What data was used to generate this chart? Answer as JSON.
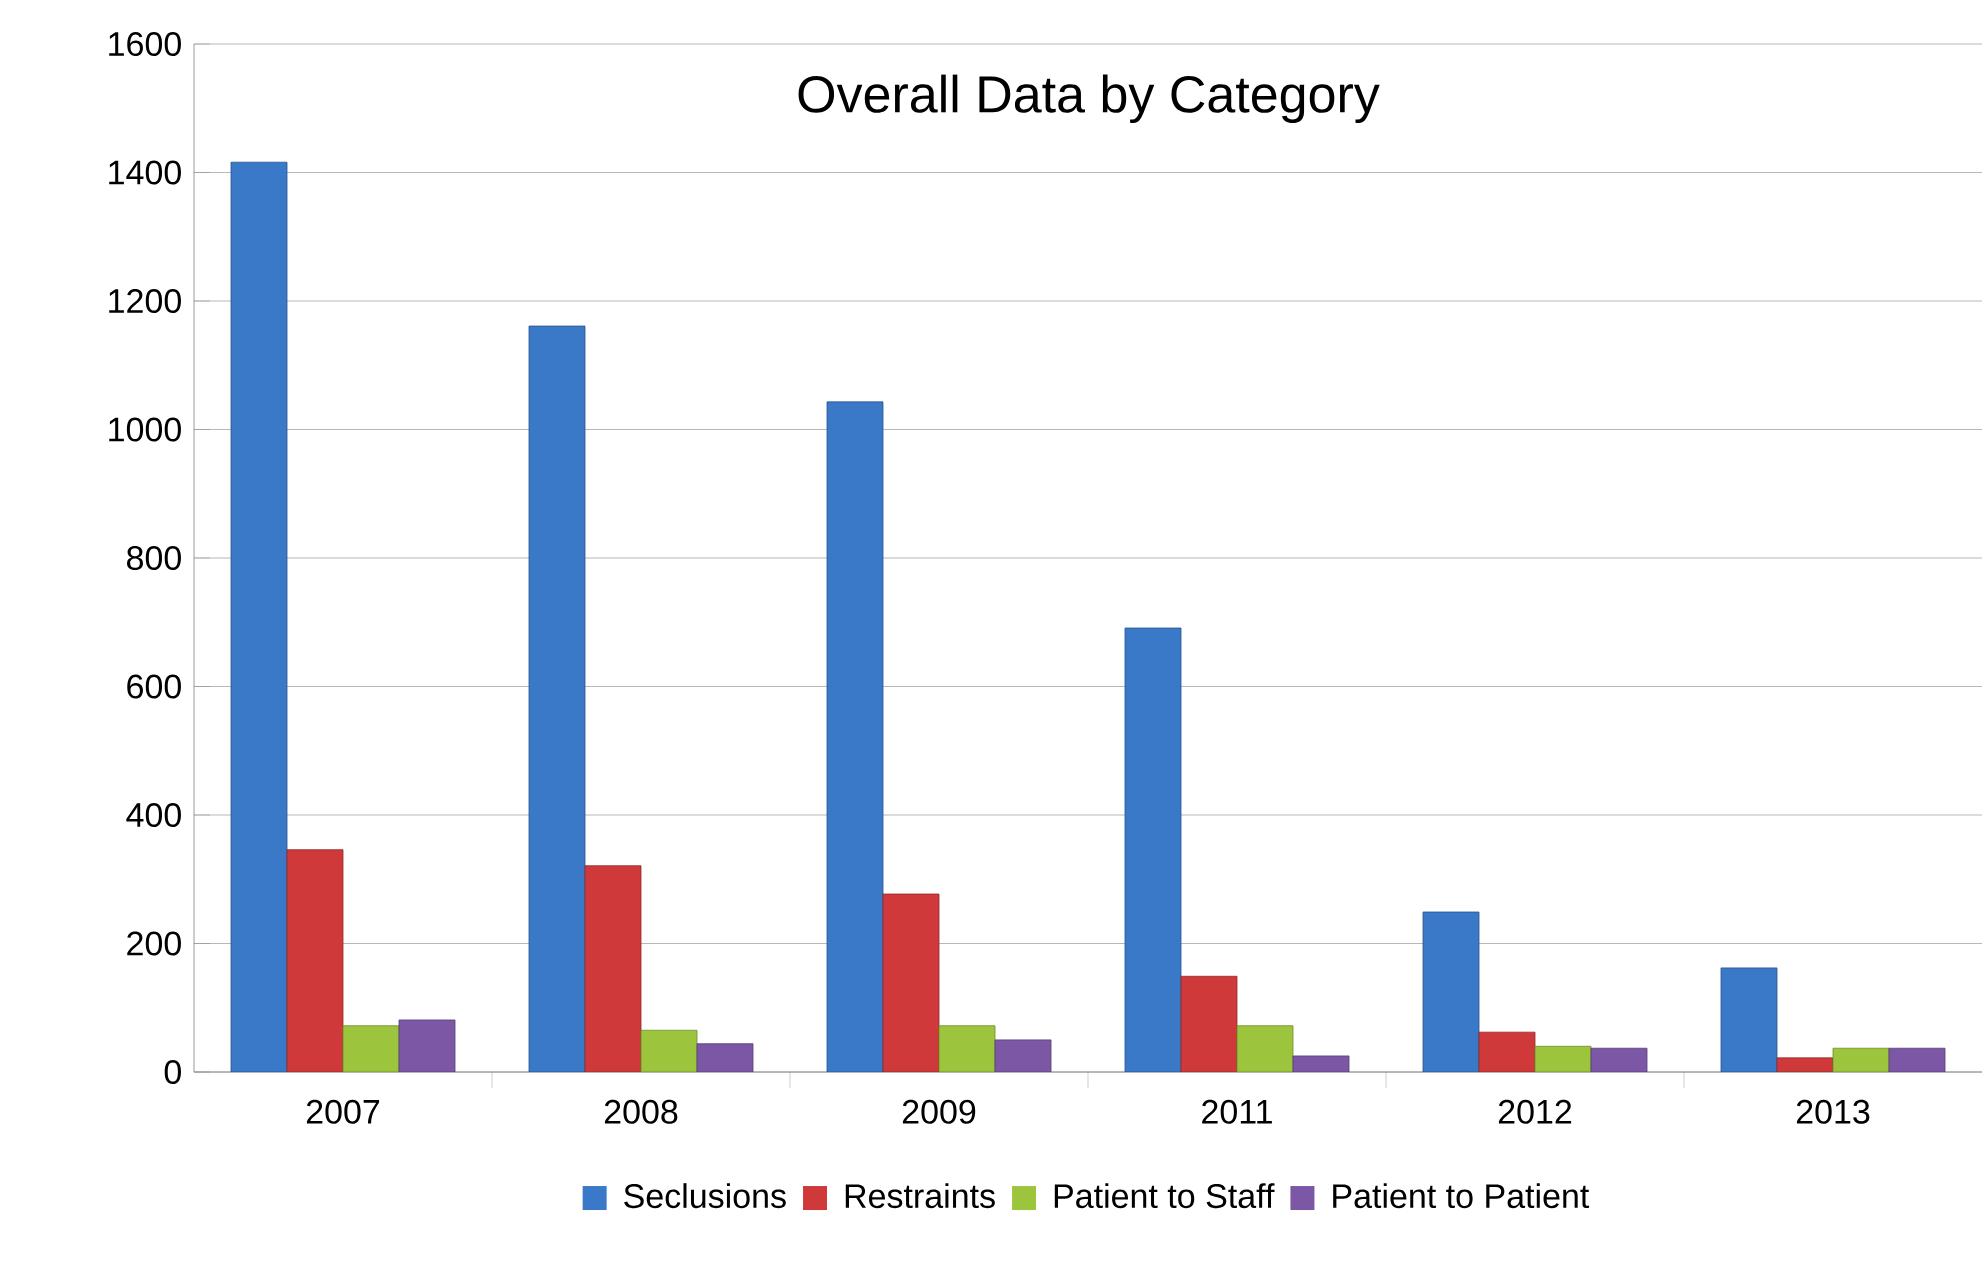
{
  "chart_data": {
    "type": "bar",
    "title": "Overall Data by Category",
    "categories": [
      "2007",
      "2008",
      "2009",
      "2011",
      "2012",
      "2013"
    ],
    "series": [
      {
        "name": "Seclusions",
        "color": "#3a78c8",
        "values": [
          1416,
          1161,
          1043,
          691,
          249,
          162
        ]
      },
      {
        "name": "Restraints",
        "color": "#d0393a",
        "values": [
          346,
          321,
          277,
          149,
          62,
          22
        ]
      },
      {
        "name": "Patient to Staff",
        "color": "#9cc53d",
        "values": [
          72,
          65,
          72,
          72,
          40,
          37
        ]
      },
      {
        "name": "Patient to Patient",
        "color": "#7b57a6",
        "values": [
          81,
          44,
          50,
          25,
          37,
          37
        ]
      }
    ],
    "ylim": [
      0,
      1600
    ],
    "yticks": [
      0,
      200,
      400,
      600,
      800,
      1000,
      1200,
      1400,
      1600
    ],
    "grid": "y",
    "legend": "bottom"
  }
}
